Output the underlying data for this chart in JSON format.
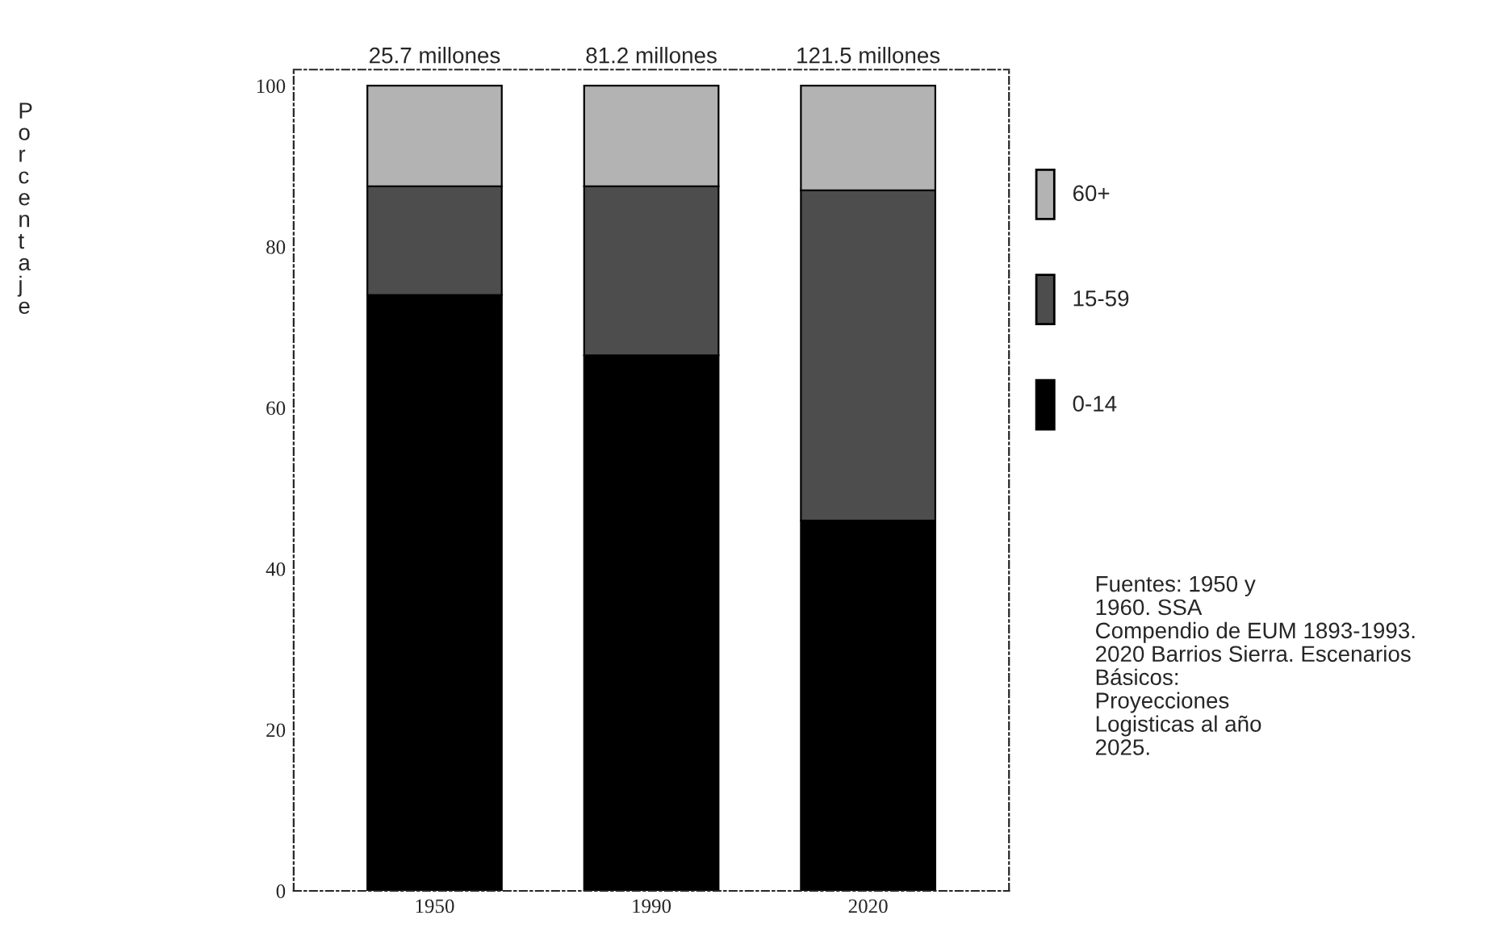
{
  "chart_data": {
    "type": "bar",
    "stacked": true,
    "ylabel": "Porcentaje",
    "categories": [
      "1950",
      "1990",
      "2020"
    ],
    "series": [
      {
        "name": "0-14",
        "color": "#000000",
        "values": [
          74,
          66.5,
          46
        ]
      },
      {
        "name": "15-59",
        "color": "#4d4d4d",
        "values": [
          13.5,
          21,
          41
        ]
      },
      {
        "name": "60+",
        "color": "#b3b3b3",
        "values": [
          12.5,
          12.5,
          13
        ]
      }
    ],
    "ylim": [
      0,
      102
    ],
    "yticks": [
      0,
      20,
      40,
      60,
      80,
      100
    ],
    "grid": false,
    "legend": "right",
    "annotations": [
      {
        "text": "25.7 millones",
        "x": "1950",
        "y": 100
      },
      {
        "text": "81.2 millones",
        "x": "1990",
        "y": 100
      },
      {
        "text": "121.5 millones",
        "x": "2020",
        "y": 100
      },
      "Fuentes: 1950 y\n1960. SSA\nCompendio de EUM 1893-1993.\n2020 Barrios Sierra. Escenarios\nBásicos:\nProyecciones\nLogisticas al año\n2025."
    ]
  }
}
